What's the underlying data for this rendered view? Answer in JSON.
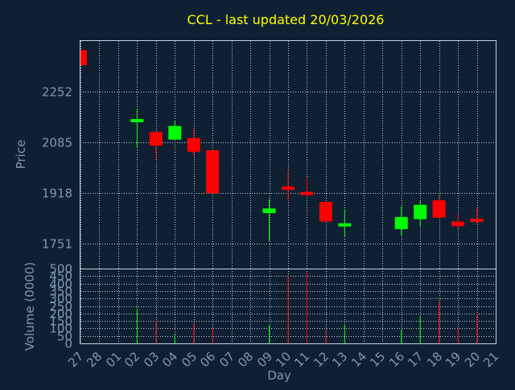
{
  "chart_data": {
    "type": "candlestick",
    "title": "CCL - last updated 20/03/2026",
    "xlabel": "Day",
    "grid": true,
    "colors": {
      "background": "#0f2033",
      "grid": "#c8d0d8",
      "axis_text": "#7f97b0",
      "title": "#ffff00",
      "up": "#00ff00",
      "down": "#ff0000"
    },
    "days": [
      "27",
      "28",
      "01",
      "02",
      "03",
      "04",
      "05",
      "06",
      "07",
      "08",
      "09",
      "10",
      "11",
      "12",
      "13",
      "14",
      "15",
      "16",
      "17",
      "18",
      "19",
      "20",
      "21"
    ],
    "price": {
      "ylabel": "Price",
      "ylim": [
        1670,
        2420
      ],
      "ticks": [
        "1751",
        "1918",
        "2085",
        "2252"
      ],
      "tick_values": [
        1751,
        1918,
        2085,
        2252
      ],
      "candles": [
        {
          "day": "27",
          "open": 2390,
          "close": 2340,
          "high": 2390,
          "low": 2340
        },
        {
          "day": "02",
          "open": 2155,
          "close": 2160,
          "high": 2195,
          "low": 2070
        },
        {
          "day": "03",
          "open": 2120,
          "close": 2075,
          "high": 2125,
          "low": 2030
        },
        {
          "day": "04",
          "open": 2095,
          "close": 2140,
          "high": 2155,
          "low": 2095
        },
        {
          "day": "05",
          "open": 2100,
          "close": 2055,
          "high": 2130,
          "low": 2040
        },
        {
          "day": "06",
          "open": 2060,
          "close": 1918,
          "high": 2060,
          "low": 1918
        },
        {
          "day": "09",
          "open": 1853,
          "close": 1868,
          "high": 1900,
          "low": 1760
        },
        {
          "day": "10",
          "open": 1940,
          "close": 1930,
          "high": 1995,
          "low": 1890
        },
        {
          "day": "11",
          "open": 1920,
          "close": 1915,
          "high": 1970,
          "low": 1905
        },
        {
          "day": "12",
          "open": 1890,
          "close": 1825,
          "high": 1890,
          "low": 1825
        },
        {
          "day": "13",
          "open": 1810,
          "close": 1818,
          "high": 1865,
          "low": 1775
        },
        {
          "day": "16",
          "open": 1800,
          "close": 1840,
          "high": 1875,
          "low": 1780
        },
        {
          "day": "17",
          "open": 1833,
          "close": 1880,
          "high": 1895,
          "low": 1810
        },
        {
          "day": "18",
          "open": 1895,
          "close": 1838,
          "high": 1910,
          "low": 1835
        },
        {
          "day": "19",
          "open": 1825,
          "close": 1810,
          "high": 1850,
          "low": 1800
        },
        {
          "day": "20",
          "open": 1833,
          "close": 1825,
          "high": 1870,
          "low": 1815
        }
      ]
    },
    "volume": {
      "ylabel": "Volume (0000)",
      "ylim": [
        0,
        500
      ],
      "ticks": [
        "0",
        "50",
        "100",
        "150",
        "200",
        "250",
        "300",
        "350",
        "400",
        "450",
        "500"
      ],
      "tick_values": [
        0,
        50,
        100,
        150,
        200,
        250,
        300,
        350,
        400,
        450,
        500
      ],
      "bars": [
        {
          "day": "02",
          "value": 230,
          "direction": "up"
        },
        {
          "day": "03",
          "value": 150,
          "direction": "down"
        },
        {
          "day": "04",
          "value": 60,
          "direction": "up"
        },
        {
          "day": "05",
          "value": 130,
          "direction": "down"
        },
        {
          "day": "06",
          "value": 110,
          "direction": "down"
        },
        {
          "day": "09",
          "value": 120,
          "direction": "up"
        },
        {
          "day": "10",
          "value": 460,
          "direction": "down"
        },
        {
          "day": "11",
          "value": 480,
          "direction": "down"
        },
        {
          "day": "12",
          "value": 90,
          "direction": "down"
        },
        {
          "day": "13",
          "value": 130,
          "direction": "up"
        },
        {
          "day": "16",
          "value": 90,
          "direction": "up"
        },
        {
          "day": "17",
          "value": 180,
          "direction": "up"
        },
        {
          "day": "18",
          "value": 290,
          "direction": "down"
        },
        {
          "day": "19",
          "value": 100,
          "direction": "down"
        },
        {
          "day": "20",
          "value": 200,
          "direction": "down"
        }
      ]
    }
  }
}
